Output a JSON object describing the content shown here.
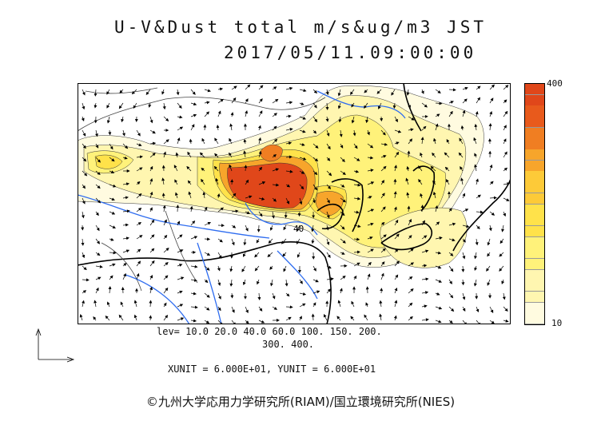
{
  "title_line1": "U-V&Dust total m/s&ug/m3 JST",
  "title_line2": "2017/05/11.09:00:00",
  "colorbar": {
    "max_label": "400",
    "min_label": "10"
  },
  "contour_label": "40",
  "levels_line1": "lev= 10.0 20.0 40.0 60.0 100. 150. 200.",
  "levels_line2": "300. 400.",
  "units_line": "XUNIT = 6.000E+01, YUNIT = 6.000E+01",
  "credit": "©九州大学応用力学研究所(RIAM)/国立環境研究所(NIES)",
  "colors": {
    "c10": "#fffbe0",
    "c20": "#fff6b0",
    "c40": "#fff27a",
    "c60": "#ffe24a",
    "c100": "#fdca38",
    "c150": "#f7a52b",
    "c200": "#f07e22",
    "c300": "#e85a1c",
    "c400": "#e0471a",
    "land_border": "#000000",
    "river": "#2f6df0"
  }
}
